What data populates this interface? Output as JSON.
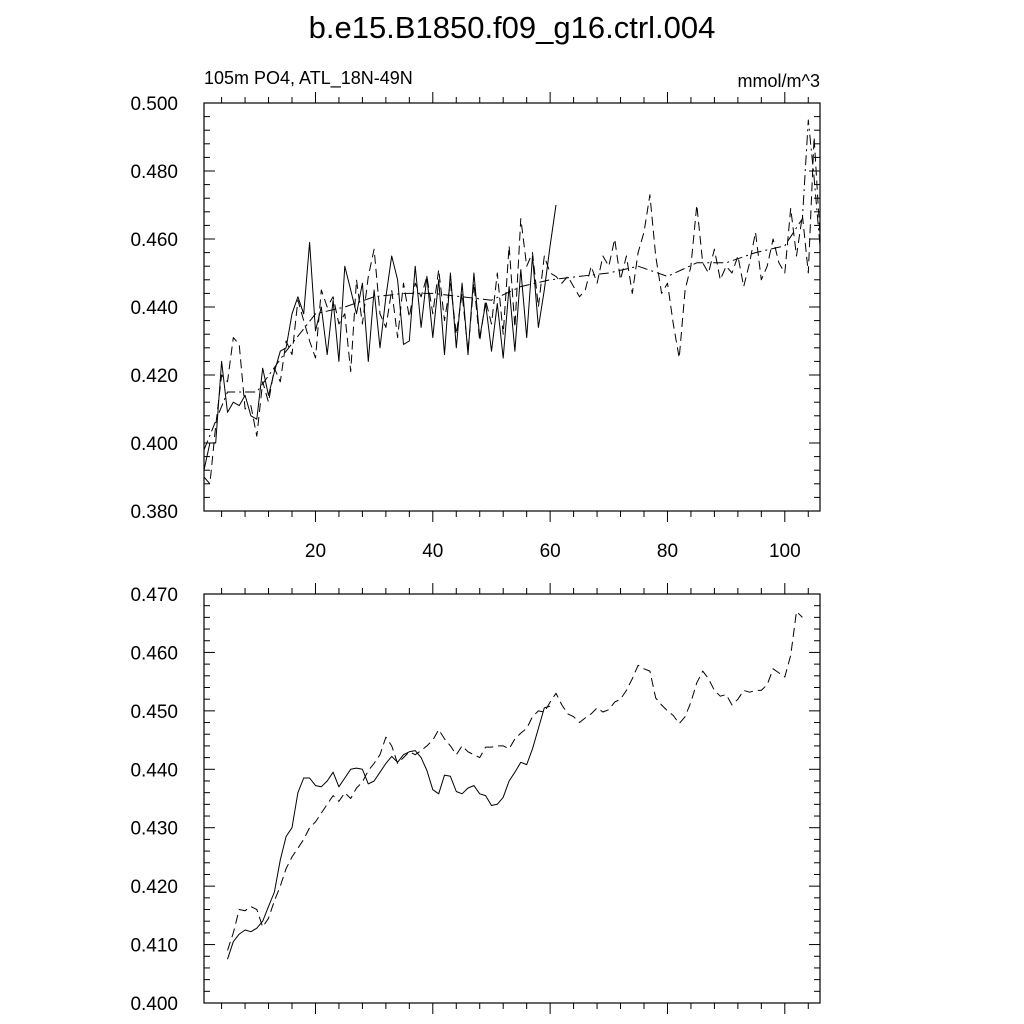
{
  "title": "b.e15.B1850.f09_g16.ctrl.004",
  "chart_data": [
    {
      "type": "line",
      "left_label": "105m PO4, ATL_18N-49N",
      "right_label": "mmol/m^3",
      "xlim": [
        1,
        106
      ],
      "ylim": [
        0.38,
        0.5
      ],
      "x_ticks": [
        20,
        40,
        60,
        80,
        100
      ],
      "x_tick_labels": [
        "20",
        "40",
        "60",
        "80",
        "100"
      ],
      "y_ticks": [
        0.38,
        0.4,
        0.42,
        0.44,
        0.46,
        0.48,
        0.5
      ],
      "y_tick_labels": [
        "0.380",
        "0.400",
        "0.420",
        "0.440",
        "0.460",
        "0.480",
        "0.500"
      ],
      "grid": false,
      "series": [
        {
          "style": "solid",
          "x": [
            1,
            2,
            3,
            4,
            5,
            6,
            7,
            8,
            9,
            10,
            11,
            12,
            13,
            14,
            15,
            16,
            17,
            18,
            19,
            20,
            21,
            22,
            23,
            24,
            25,
            26,
            27,
            28,
            29,
            30,
            31,
            32,
            33,
            34,
            35,
            36,
            37,
            38,
            39,
            40,
            41,
            42,
            43,
            44,
            45,
            46,
            47,
            48,
            49,
            50,
            51,
            52,
            53,
            54,
            55,
            56,
            57,
            58,
            59,
            60,
            61
          ],
          "y": [
            0.392,
            0.4,
            0.4,
            0.424,
            0.409,
            0.412,
            0.411,
            0.414,
            0.408,
            0.407,
            0.422,
            0.414,
            0.421,
            0.427,
            0.428,
            0.438,
            0.443,
            0.438,
            0.459,
            0.433,
            0.44,
            0.426,
            0.442,
            0.424,
            0.452,
            0.445,
            0.438,
            0.447,
            0.424,
            0.445,
            0.428,
            0.443,
            0.455,
            0.448,
            0.429,
            0.43,
            0.452,
            0.434,
            0.449,
            0.431,
            0.448,
            0.426,
            0.45,
            0.428,
            0.447,
            0.426,
            0.45,
            0.431,
            0.441,
            0.427,
            0.441,
            0.425,
            0.446,
            0.427,
            0.451,
            0.431,
            0.455,
            0.434,
            0.445,
            0.458,
            0.47
          ]
        },
        {
          "style": "dashed",
          "x": [
            1,
            2,
            3,
            4,
            5,
            6,
            7,
            8,
            9,
            10,
            11,
            12,
            13,
            14,
            15,
            16,
            17,
            18,
            19,
            20,
            21,
            22,
            23,
            24,
            25,
            26,
            27,
            28,
            29,
            30,
            31,
            32,
            33,
            34,
            35,
            36,
            37,
            38,
            39,
            40,
            41,
            42,
            43,
            44,
            45,
            46,
            47,
            48,
            49,
            50,
            51,
            52,
            53,
            54,
            55,
            56,
            57,
            58,
            59,
            60,
            61,
            62,
            63,
            64,
            65,
            66,
            67,
            68,
            69,
            70,
            71,
            72,
            73,
            74,
            75,
            76,
            77,
            78,
            79,
            80,
            81,
            82,
            83,
            84,
            85,
            86,
            87,
            88,
            89,
            90,
            91,
            92,
            93,
            94,
            95,
            96,
            97,
            98,
            99,
            100,
            101,
            102,
            103,
            104,
            105,
            106
          ],
          "y": [
            0.39,
            0.388,
            0.405,
            0.42,
            0.418,
            0.431,
            0.429,
            0.41,
            0.411,
            0.402,
            0.418,
            0.412,
            0.422,
            0.418,
            0.43,
            0.426,
            0.442,
            0.436,
            0.43,
            0.425,
            0.445,
            0.44,
            0.443,
            0.435,
            0.438,
            0.421,
            0.448,
            0.435,
            0.449,
            0.457,
            0.438,
            0.434,
            0.445,
            0.431,
            0.447,
            0.437,
            0.447,
            0.443,
            0.449,
            0.438,
            0.451,
            0.436,
            0.447,
            0.432,
            0.444,
            0.427,
            0.447,
            0.43,
            0.442,
            0.435,
            0.45,
            0.432,
            0.458,
            0.434,
            0.466,
            0.452,
            0.456,
            0.44,
            0.455,
            0.45,
            0.449,
            0.447,
            0.449,
            0.446,
            0.443,
            0.445,
            0.452,
            0.447,
            0.455,
            0.452,
            0.46,
            0.448,
            0.455,
            0.444,
            0.456,
            0.462,
            0.473,
            0.455,
            0.444,
            0.447,
            0.435,
            0.425,
            0.445,
            0.452,
            0.47,
            0.453,
            0.45,
            0.457,
            0.448,
            0.452,
            0.45,
            0.455,
            0.446,
            0.453,
            0.462,
            0.448,
            0.452,
            0.46,
            0.453,
            0.45,
            0.469,
            0.455,
            0.467,
            0.45,
            0.49,
            0.461
          ]
        },
        {
          "style": "dash-dot",
          "x": [
            1,
            5,
            10,
            15,
            20,
            25,
            30,
            35,
            40,
            45,
            50,
            55,
            60,
            65,
            70,
            75,
            80,
            85,
            90,
            95,
            100,
            103,
            104,
            105,
            106
          ],
          "y": [
            0.398,
            0.415,
            0.415,
            0.427,
            0.438,
            0.44,
            0.443,
            0.444,
            0.444,
            0.443,
            0.442,
            0.446,
            0.448,
            0.449,
            0.45,
            0.452,
            0.449,
            0.453,
            0.453,
            0.456,
            0.458,
            0.466,
            0.495,
            0.478,
            0.458
          ]
        }
      ]
    },
    {
      "type": "line",
      "xlim": [
        1,
        106
      ],
      "ylim": [
        0.4,
        0.47
      ],
      "x_ticks": [
        20,
        40,
        60,
        80,
        100
      ],
      "y_ticks": [
        0.4,
        0.41,
        0.42,
        0.43,
        0.44,
        0.45,
        0.46,
        0.47
      ],
      "y_tick_labels": [
        "0.400",
        "0.410",
        "0.420",
        "0.430",
        "0.440",
        "0.450",
        "0.460",
        "0.470"
      ],
      "grid": false,
      "series": [
        {
          "style": "solid",
          "x": [
            5,
            6,
            7,
            8,
            9,
            10,
            11,
            12,
            13,
            14,
            15,
            16,
            17,
            18,
            19,
            20,
            21,
            22,
            23,
            24,
            25,
            26,
            27,
            28,
            29,
            30,
            31,
            32,
            33,
            34,
            35,
            36,
            37,
            38,
            39,
            40,
            41,
            42,
            43,
            44,
            45,
            46,
            47,
            48,
            49,
            50,
            51,
            52,
            53,
            54,
            55,
            56,
            57,
            58,
            59,
            60
          ],
          "y": [
            0.4075,
            0.4105,
            0.4118,
            0.4125,
            0.4122,
            0.4128,
            0.414,
            0.4165,
            0.419,
            0.4245,
            0.4285,
            0.43,
            0.436,
            0.4385,
            0.4385,
            0.4372,
            0.437,
            0.438,
            0.4395,
            0.437,
            0.4385,
            0.44,
            0.4402,
            0.44,
            0.4375,
            0.438,
            0.4395,
            0.441,
            0.4422,
            0.4412,
            0.4425,
            0.443,
            0.4432,
            0.442,
            0.4398,
            0.4365,
            0.4358,
            0.439,
            0.4388,
            0.4362,
            0.4358,
            0.4368,
            0.4372,
            0.4358,
            0.4355,
            0.4338,
            0.434,
            0.4352,
            0.438,
            0.4395,
            0.4412,
            0.4408,
            0.4435,
            0.447,
            0.4505,
            0.4508
          ]
        },
        {
          "style": "dashed",
          "x": [
            5,
            6,
            7,
            8,
            9,
            10,
            11,
            12,
            13,
            14,
            15,
            16,
            17,
            18,
            19,
            20,
            21,
            22,
            23,
            24,
            25,
            26,
            27,
            28,
            29,
            30,
            31,
            32,
            33,
            34,
            35,
            36,
            37,
            38,
            39,
            40,
            41,
            42,
            43,
            44,
            45,
            46,
            47,
            48,
            49,
            50,
            51,
            52,
            53,
            54,
            55,
            56,
            57,
            58,
            59,
            60,
            61,
            62,
            63,
            64,
            65,
            66,
            67,
            68,
            69,
            70,
            71,
            72,
            73,
            74,
            75,
            76,
            77,
            78,
            79,
            80,
            81,
            82,
            83,
            84,
            85,
            86,
            87,
            88,
            89,
            90,
            91,
            92,
            93,
            94,
            95,
            96,
            97,
            98,
            99,
            100,
            101,
            102,
            103
          ],
          "y": [
            0.409,
            0.412,
            0.416,
            0.4158,
            0.4165,
            0.416,
            0.413,
            0.4145,
            0.4175,
            0.42,
            0.423,
            0.425,
            0.4265,
            0.428,
            0.43,
            0.431,
            0.4325,
            0.434,
            0.4355,
            0.4345,
            0.436,
            0.435,
            0.4368,
            0.4378,
            0.4398,
            0.441,
            0.4425,
            0.4455,
            0.444,
            0.441,
            0.442,
            0.443,
            0.4425,
            0.4432,
            0.444,
            0.445,
            0.4468,
            0.4452,
            0.444,
            0.4425,
            0.444,
            0.443,
            0.4425,
            0.442,
            0.4438,
            0.4438,
            0.444,
            0.444,
            0.4435,
            0.4452,
            0.4462,
            0.447,
            0.449,
            0.45,
            0.4498,
            0.4515,
            0.453,
            0.451,
            0.4495,
            0.449,
            0.448,
            0.4488,
            0.4495,
            0.4505,
            0.4498,
            0.4502,
            0.4515,
            0.452,
            0.4535,
            0.4555,
            0.4578,
            0.4572,
            0.4568,
            0.4522,
            0.451,
            0.45,
            0.4492,
            0.4478,
            0.449,
            0.4515,
            0.4548,
            0.4568,
            0.4555,
            0.4535,
            0.4525,
            0.4528,
            0.451,
            0.452,
            0.4535,
            0.4532,
            0.4535,
            0.4535,
            0.4545,
            0.4572,
            0.4565,
            0.4558,
            0.4595,
            0.467,
            0.466
          ]
        }
      ]
    }
  ]
}
